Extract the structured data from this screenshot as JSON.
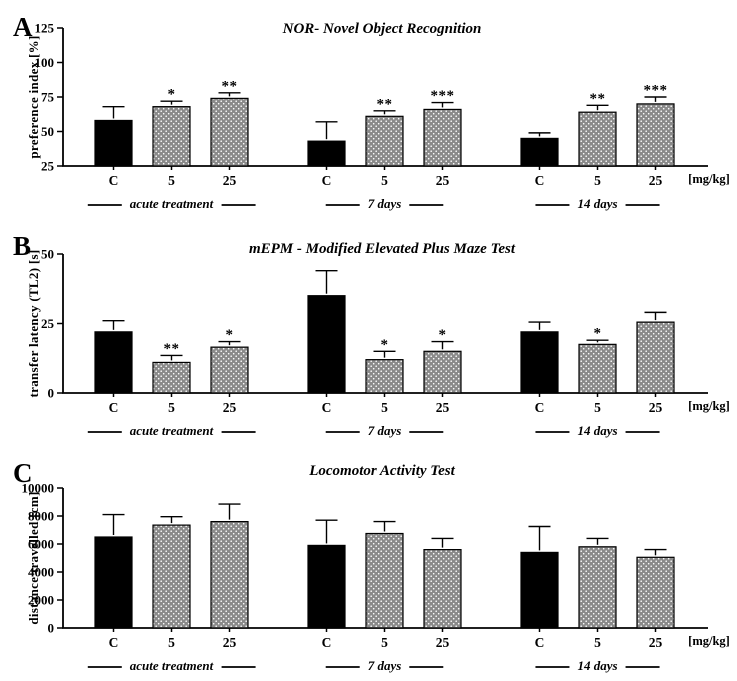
{
  "figure": {
    "dose_unit_label": "[mg/kg]",
    "colors": {
      "control_bar": "#000000",
      "treated_bar_fill": "#8a8a8a",
      "treated_bar_dots": "#ffffff",
      "axis": "#000000"
    }
  },
  "chart_data": [
    {
      "type": "bar",
      "panel_letter": "A",
      "title": "NOR- Novel Object Recognition",
      "ylabel": "preference index [%]",
      "xlabel": "[mg/kg]",
      "ylim": [
        25,
        125
      ],
      "yticks": [
        25,
        50,
        75,
        100,
        125
      ],
      "grid": false,
      "legend": "none",
      "groups": [
        {
          "label": "acute treatment",
          "bars": [
            {
              "label": "C",
              "value": 58,
              "error": 10,
              "sig": "",
              "style": "solid-black"
            },
            {
              "label": "5",
              "value": 68,
              "error": 4,
              "sig": "*",
              "style": "dotted-gray"
            },
            {
              "label": "25",
              "value": 74,
              "error": 4,
              "sig": "**",
              "style": "dotted-gray"
            }
          ]
        },
        {
          "label": "7 days",
          "bars": [
            {
              "label": "C",
              "value": 43,
              "error": 14,
              "sig": "",
              "style": "solid-black"
            },
            {
              "label": "5",
              "value": 61,
              "error": 4,
              "sig": "**",
              "style": "dotted-gray"
            },
            {
              "label": "25",
              "value": 66,
              "error": 5,
              "sig": "***",
              "style": "dotted-gray"
            }
          ]
        },
        {
          "label": "14 days",
          "bars": [
            {
              "label": "C",
              "value": 45,
              "error": 4,
              "sig": "",
              "style": "solid-black"
            },
            {
              "label": "5",
              "value": 64,
              "error": 5,
              "sig": "**",
              "style": "dotted-gray"
            },
            {
              "label": "25",
              "value": 70,
              "error": 5,
              "sig": "***",
              "style": "dotted-gray"
            }
          ]
        }
      ]
    },
    {
      "type": "bar",
      "panel_letter": "B",
      "title": "mEPM - Modified Elevated Plus Maze Test",
      "ylabel": "transfer latency (TL2) [s]",
      "xlabel": "[mg/kg]",
      "ylim": [
        0,
        50
      ],
      "yticks": [
        0,
        25,
        50
      ],
      "grid": false,
      "legend": "none",
      "groups": [
        {
          "label": "acute treatment",
          "bars": [
            {
              "label": "C",
              "value": 22,
              "error": 4,
              "sig": "",
              "style": "solid-black"
            },
            {
              "label": "5",
              "value": 11,
              "error": 2.5,
              "sig": "**",
              "style": "dotted-gray"
            },
            {
              "label": "25",
              "value": 16.5,
              "error": 2,
              "sig": "*",
              "style": "dotted-gray"
            }
          ]
        },
        {
          "label": "7 days",
          "bars": [
            {
              "label": "C",
              "value": 35,
              "error": 9,
              "sig": "",
              "style": "solid-black"
            },
            {
              "label": "5",
              "value": 12,
              "error": 3,
              "sig": "*",
              "style": "dotted-gray"
            },
            {
              "label": "25",
              "value": 15,
              "error": 3.5,
              "sig": "*",
              "style": "dotted-gray"
            }
          ]
        },
        {
          "label": "14 days",
          "bars": [
            {
              "label": "C",
              "value": 22,
              "error": 3.5,
              "sig": "",
              "style": "solid-black"
            },
            {
              "label": "5",
              "value": 17.5,
              "error": 1.5,
              "sig": "*",
              "style": "dotted-gray"
            },
            {
              "label": "25",
              "value": 25.5,
              "error": 3.5,
              "sig": "",
              "style": "dotted-gray"
            }
          ]
        }
      ]
    },
    {
      "type": "bar",
      "panel_letter": "C",
      "title": "Locomotor Activity Test",
      "ylabel": "distance travelled [cm]",
      "xlabel": "[mg/kg]",
      "ylim": [
        0,
        10000
      ],
      "yticks": [
        0,
        2000,
        4000,
        6000,
        8000,
        10000
      ],
      "grid": false,
      "legend": "none",
      "groups": [
        {
          "label": "acute treatment",
          "bars": [
            {
              "label": "C",
              "value": 6500,
              "error": 1600,
              "sig": "",
              "style": "solid-black"
            },
            {
              "label": "5",
              "value": 7350,
              "error": 600,
              "sig": "",
              "style": "dotted-gray"
            },
            {
              "label": "25",
              "value": 7600,
              "error": 1250,
              "sig": "",
              "style": "dotted-gray"
            }
          ]
        },
        {
          "label": "7 days",
          "bars": [
            {
              "label": "C",
              "value": 5900,
              "error": 1800,
              "sig": "",
              "style": "solid-black"
            },
            {
              "label": "5",
              "value": 6750,
              "error": 850,
              "sig": "",
              "style": "dotted-gray"
            },
            {
              "label": "25",
              "value": 5600,
              "error": 800,
              "sig": "",
              "style": "dotted-gray"
            }
          ]
        },
        {
          "label": "14 days",
          "bars": [
            {
              "label": "C",
              "value": 5400,
              "error": 1850,
              "sig": "",
              "style": "solid-black"
            },
            {
              "label": "5",
              "value": 5800,
              "error": 600,
              "sig": "",
              "style": "dotted-gray"
            },
            {
              "label": "25",
              "value": 5050,
              "error": 550,
              "sig": "",
              "style": "dotted-gray"
            }
          ]
        }
      ]
    }
  ]
}
